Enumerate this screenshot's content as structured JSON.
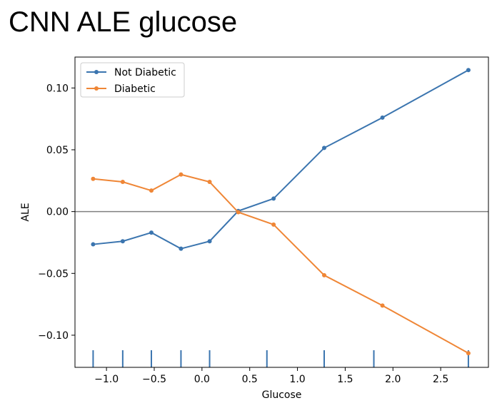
{
  "chart_data": {
    "type": "line",
    "title": "CNN ALE glucose",
    "xlabel": "Glucose",
    "ylabel": "ALE",
    "xlim": [
      -1.33,
      3.0
    ],
    "ylim": [
      -0.126,
      0.125
    ],
    "xticks": [
      -1.0,
      -0.5,
      0.0,
      0.5,
      1.0,
      1.5,
      2.0,
      2.5
    ],
    "xtick_labels": [
      "−1.0",
      "−0.5",
      "0.0",
      "0.5",
      "1.0",
      "1.5",
      "2.0",
      "2.5"
    ],
    "yticks": [
      -0.1,
      -0.05,
      0.0,
      0.05,
      0.1
    ],
    "ytick_labels": [
      "−0.10",
      "−0.05",
      "0.00",
      "0.05",
      "0.10"
    ],
    "grid": false,
    "legend_placement": "upper-left",
    "reference_line_y": 0.0,
    "x": [
      -1.14,
      -0.83,
      -0.53,
      -0.22,
      0.08,
      0.38,
      0.75,
      1.28,
      1.89,
      2.79
    ],
    "series": [
      {
        "name": "Not Diabetic",
        "color": "#3b75af",
        "values": [
          -0.0265,
          -0.024,
          -0.017,
          -0.03,
          -0.024,
          0.0005,
          0.0105,
          0.0515,
          0.076,
          0.1145
        ]
      },
      {
        "name": "Diabetic",
        "color": "#ef8636",
        "values": [
          0.0265,
          0.024,
          0.017,
          0.03,
          0.024,
          -0.0005,
          -0.0105,
          -0.0515,
          -0.076,
          -0.1145
        ]
      }
    ],
    "rug_x": [
      -1.14,
      -0.83,
      -0.53,
      -0.22,
      0.08,
      0.68,
      1.28,
      1.8,
      2.79
    ],
    "rug_color": "#3b75af",
    "zero_line_color": "#808080"
  }
}
